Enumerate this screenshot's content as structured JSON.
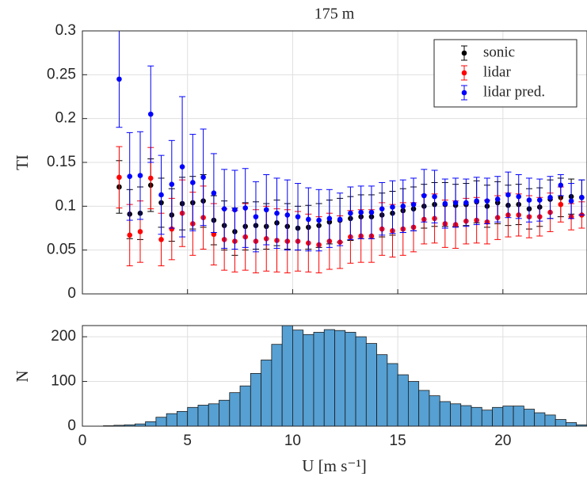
{
  "chart_data": [
    {
      "type": "errorbar",
      "title": "175 m",
      "ylabel": "TI",
      "x": [
        1.75,
        2.25,
        2.75,
        3.25,
        3.75,
        4.25,
        4.75,
        5.25,
        5.75,
        6.25,
        6.75,
        7.25,
        7.75,
        8.25,
        8.75,
        9.25,
        9.75,
        10.25,
        10.75,
        11.25,
        11.75,
        12.25,
        12.75,
        13.25,
        13.75,
        14.25,
        14.75,
        15.25,
        15.75,
        16.25,
        16.75,
        17.25,
        17.75,
        18.25,
        18.75,
        19.25,
        19.75,
        20.25,
        20.75,
        21.25,
        21.75,
        22.25,
        22.75,
        23.25,
        23.75
      ],
      "series": [
        {
          "name": "sonic",
          "color": "#000000",
          "values": [
            0.122,
            0.091,
            0.092,
            0.124,
            0.104,
            0.09,
            0.103,
            0.104,
            0.106,
            0.084,
            0.078,
            0.071,
            0.077,
            0.078,
            0.077,
            0.081,
            0.077,
            0.075,
            0.076,
            0.078,
            0.082,
            0.084,
            0.086,
            0.088,
            0.088,
            0.09,
            0.092,
            0.095,
            0.097,
            0.1,
            0.102,
            0.102,
            0.101,
            0.102,
            0.105,
            0.1,
            0.104,
            0.101,
            0.102,
            0.097,
            0.099,
            0.108,
            0.11,
            0.111,
            0.11
          ],
          "errors": [
            0.03,
            0.028,
            0.03,
            0.03,
            0.028,
            0.03,
            0.03,
            0.03,
            0.03,
            0.028,
            0.028,
            0.027,
            0.027,
            0.027,
            0.026,
            0.026,
            0.026,
            0.025,
            0.025,
            0.025,
            0.025,
            0.025,
            0.025,
            0.025,
            0.025,
            0.025,
            0.025,
            0.025,
            0.025,
            0.025,
            0.025,
            0.025,
            0.024,
            0.024,
            0.024,
            0.024,
            0.024,
            0.023,
            0.023,
            0.023,
            0.022,
            0.022,
            0.022,
            0.02,
            0.02
          ]
        },
        {
          "name": "lidar",
          "color": "#ff0000",
          "values": [
            0.133,
            0.067,
            0.071,
            0.132,
            0.062,
            0.074,
            0.092,
            0.08,
            0.087,
            0.068,
            0.062,
            0.06,
            0.065,
            0.06,
            0.063,
            0.061,
            0.06,
            0.06,
            0.058,
            0.056,
            0.06,
            0.059,
            0.065,
            0.066,
            0.066,
            0.074,
            0.072,
            0.074,
            0.076,
            0.085,
            0.086,
            0.08,
            0.079,
            0.083,
            0.084,
            0.082,
            0.087,
            0.09,
            0.09,
            0.088,
            0.088,
            0.093,
            0.102,
            0.088,
            0.09
          ],
          "errors": [
            0.035,
            0.035,
            0.035,
            0.035,
            0.03,
            0.035,
            0.038,
            0.036,
            0.036,
            0.035,
            0.035,
            0.035,
            0.038,
            0.036,
            0.037,
            0.036,
            0.036,
            0.034,
            0.033,
            0.032,
            0.032,
            0.03,
            0.03,
            0.03,
            0.03,
            0.03,
            0.03,
            0.03,
            0.028,
            0.028,
            0.028,
            0.027,
            0.027,
            0.026,
            0.026,
            0.025,
            0.025,
            0.025,
            0.024,
            0.024,
            0.022,
            0.022,
            0.02,
            0.015,
            0.015
          ]
        },
        {
          "name": "lidar pred.",
          "color": "#0000ff",
          "values": [
            0.245,
            0.134,
            0.135,
            0.205,
            0.113,
            0.125,
            0.145,
            0.127,
            0.133,
            0.115,
            0.097,
            0.096,
            0.098,
            0.088,
            0.096,
            0.092,
            0.09,
            0.088,
            0.085,
            0.084,
            0.086,
            0.085,
            0.092,
            0.093,
            0.093,
            0.097,
            0.099,
            0.1,
            0.102,
            0.112,
            0.111,
            0.103,
            0.104,
            0.104,
            0.106,
            0.106,
            0.108,
            0.113,
            0.111,
            0.107,
            0.107,
            0.11,
            0.124,
            0.106,
            0.11
          ],
          "errors": [
            0.055,
            0.05,
            0.05,
            0.055,
            0.045,
            0.05,
            0.08,
            0.055,
            0.055,
            0.045,
            0.045,
            0.045,
            0.045,
            0.04,
            0.04,
            0.04,
            0.04,
            0.038,
            0.036,
            0.035,
            0.033,
            0.03,
            0.03,
            0.03,
            0.03,
            0.03,
            0.03,
            0.03,
            0.03,
            0.03,
            0.03,
            0.028,
            0.028,
            0.027,
            0.027,
            0.026,
            0.026,
            0.026,
            0.025,
            0.025,
            0.024,
            0.024,
            0.012,
            0.02,
            0.02
          ]
        }
      ],
      "xlim": [
        0,
        24
      ],
      "xticks": [
        0,
        5,
        10,
        15,
        20
      ],
      "ylim": [
        0,
        0.3
      ],
      "yticks": [
        0,
        0.05,
        0.1,
        0.15,
        0.2,
        0.25,
        0.3
      ],
      "grid": true,
      "legend": "northeast"
    },
    {
      "type": "histogram",
      "xlabel": "U [m s⁻¹]",
      "ylabel": "N",
      "color": "#56a0d3",
      "bins": [
        0,
        0.5,
        1,
        1.5,
        2,
        2.5,
        3,
        3.5,
        4,
        4.5,
        5,
        5.5,
        6,
        6.5,
        7,
        7.5,
        8,
        8.5,
        9,
        9.5,
        10,
        10.5,
        11,
        11.5,
        12,
        12.5,
        13,
        13.5,
        14,
        14.5,
        15,
        15.5,
        16,
        16.5,
        17,
        17.5,
        18,
        18.5,
        19,
        19.5,
        20,
        20.5,
        21,
        21.5,
        22,
        22.5,
        23,
        23.5,
        24
      ],
      "counts": [
        0,
        0,
        1,
        2,
        3,
        5,
        10,
        20,
        28,
        33,
        42,
        47,
        50,
        58,
        75,
        90,
        118,
        148,
        183,
        225,
        215,
        205,
        210,
        216,
        214,
        210,
        200,
        185,
        160,
        140,
        115,
        100,
        80,
        68,
        55,
        50,
        46,
        42,
        36,
        42,
        45,
        45,
        38,
        30,
        25,
        15,
        8,
        3
      ],
      "xlim": [
        0,
        24
      ],
      "xticks": [
        0,
        5,
        10,
        15,
        20
      ],
      "ylim": [
        0,
        225
      ],
      "yticks": [
        0,
        100,
        200
      ],
      "grid": true
    }
  ]
}
